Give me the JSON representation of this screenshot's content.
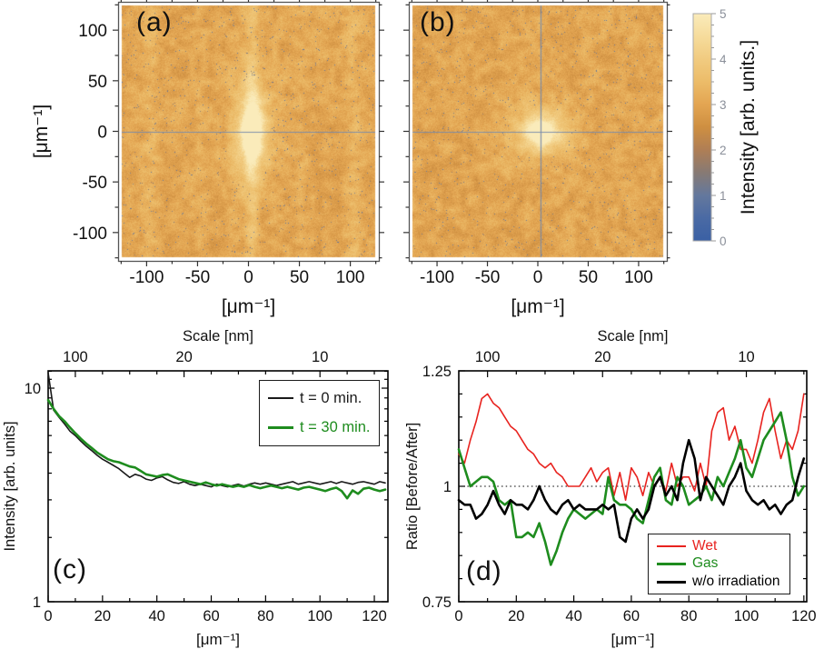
{
  "panels": {
    "a": {
      "label": "(a)",
      "axis_title_x": "[μm⁻¹]",
      "axis_title_y": "[μm⁻¹]",
      "tick_values": [
        -100,
        -50,
        0,
        50,
        100
      ],
      "minor_step": 25,
      "range": [
        -128,
        128
      ],
      "crosshair": "horizontal",
      "has_streaks": true
    },
    "b": {
      "label": "(b)",
      "axis_title_x": "[μm⁻¹]",
      "tick_values": [
        -100,
        -50,
        0,
        50,
        100
      ],
      "minor_step": 25,
      "range": [
        -128,
        128
      ],
      "crosshair": "both",
      "has_streaks": false
    }
  },
  "colorbar": {
    "title": "Intensity [arb. units.]",
    "tick_values": [
      0,
      1,
      2,
      3,
      4,
      5
    ],
    "minor_step": 0.25,
    "range": [
      0,
      5
    ],
    "gradient_stops": [
      [
        0,
        "#3A60A4"
      ],
      [
        0.5,
        "#4A6AA4"
      ],
      [
        1,
        "#64789D"
      ],
      [
        1.5,
        "#877A74"
      ],
      [
        2,
        "#AF7E55"
      ],
      [
        2.5,
        "#CE8F41"
      ],
      [
        3,
        "#E3A552"
      ],
      [
        3.5,
        "#ECBC69"
      ],
      [
        4,
        "#F1CB80"
      ],
      [
        4.5,
        "#F6DC9C"
      ],
      [
        5,
        "#FAEBBA"
      ]
    ]
  },
  "chart_data": [
    {
      "id": "c",
      "type": "line",
      "panel_label": "(c)",
      "x_axis": {
        "title": "[μm⁻¹]",
        "min": 0,
        "max": 125,
        "major_ticks": [
          0,
          20,
          40,
          60,
          80,
          100,
          120
        ],
        "minor_step": 10
      },
      "y_axis": {
        "title": "Intensity [arb. units]",
        "scale": "log",
        "min": 1,
        "max": 12.05,
        "labeled_ticks": [
          1,
          10
        ],
        "minor_ticks": [
          2,
          3,
          4,
          5,
          6,
          7,
          8,
          9,
          11,
          12
        ]
      },
      "top_axis": {
        "title": "Scale [nm]",
        "minor_step": 10,
        "labeled_ticks": [
          {
            "value": 10,
            "label": "100"
          },
          {
            "value": 50,
            "label": "20"
          },
          {
            "value": 100,
            "label": "10"
          }
        ]
      },
      "x_start": 0,
      "x_step": 2,
      "legend_position": "top-right",
      "series": [
        {
          "name": "t = 0 min.",
          "color": "#1a1a1a",
          "line_width": 1.6,
          "values": [
            11.8,
            7.9,
            7.3,
            6.8,
            6.3,
            6.0,
            5.65,
            5.35,
            5.1,
            4.85,
            4.65,
            4.5,
            4.35,
            4.2,
            4.0,
            3.82,
            3.95,
            3.88,
            3.75,
            3.7,
            3.8,
            3.85,
            3.72,
            3.62,
            3.58,
            3.65,
            3.55,
            3.5,
            3.55,
            3.5,
            3.45,
            3.55,
            3.5,
            3.45,
            3.5,
            3.55,
            3.48,
            3.55,
            3.6,
            3.55,
            3.6,
            3.55,
            3.5,
            3.55,
            3.6,
            3.65,
            3.55,
            3.6,
            3.65,
            3.6,
            3.55,
            3.6,
            3.65,
            3.58,
            3.65,
            3.6,
            3.55,
            3.62,
            3.65,
            3.6,
            3.55,
            3.65,
            3.6
          ]
        },
        {
          "name": "t = 30 min.",
          "color": "#1e8c1e",
          "line_width": 2.6,
          "values": [
            8.8,
            8.0,
            7.4,
            7.0,
            6.55,
            6.15,
            5.8,
            5.5,
            5.25,
            5.0,
            4.82,
            4.65,
            4.55,
            4.5,
            4.4,
            4.3,
            4.25,
            4.1,
            3.95,
            3.9,
            3.85,
            3.92,
            3.95,
            3.85,
            3.75,
            3.7,
            3.65,
            3.6,
            3.55,
            3.62,
            3.55,
            3.5,
            3.55,
            3.5,
            3.45,
            3.5,
            3.45,
            3.52,
            3.45,
            3.4,
            3.45,
            3.5,
            3.45,
            3.4,
            3.45,
            3.4,
            3.35,
            3.42,
            3.45,
            3.4,
            3.35,
            3.3,
            3.37,
            3.42,
            3.3,
            3.05,
            3.32,
            3.2,
            3.38,
            3.42,
            3.35,
            3.3,
            3.35
          ]
        }
      ]
    },
    {
      "id": "d",
      "type": "line",
      "panel_label": "(d)",
      "x_axis": {
        "title": "[μm⁻¹]",
        "min": 0,
        "max": 121,
        "major_ticks": [
          0,
          20,
          40,
          60,
          80,
          100,
          120
        ],
        "minor_step": 10
      },
      "y_axis": {
        "title": "Ratio [Before/After]",
        "scale": "linear",
        "min": 0.75,
        "max": 1.25,
        "labeled_ticks": [
          0.75,
          1,
          1.25
        ],
        "minor_step": 0.05
      },
      "top_axis": {
        "title": "Scale [nm]",
        "minor_step": 10,
        "labeled_ticks": [
          {
            "value": 10,
            "label": "100"
          },
          {
            "value": 50,
            "label": "20"
          },
          {
            "value": 100,
            "label": "10"
          }
        ]
      },
      "reference_line": 1,
      "x_start": 0,
      "x_step": 2,
      "legend_position": "bottom-right",
      "series": [
        {
          "name": "Wet",
          "color": "#e8231f",
          "line_width": 1.6,
          "values": [
            1.07,
            1.05,
            1.1,
            1.14,
            1.19,
            1.2,
            1.18,
            1.17,
            1.15,
            1.13,
            1.12,
            1.1,
            1.08,
            1.07,
            1.05,
            1.04,
            1.05,
            1.03,
            1.02,
            1.0,
            1.0,
            1.0,
            1.02,
            1.04,
            1.01,
            1.03,
            1.04,
            0.98,
            1.03,
            0.97,
            1.04,
            1.02,
            0.98,
            1.03,
            1.0,
            1.02,
            0.99,
            1.05,
            1.0,
            1.02,
            1.02,
            0.99,
            1.05,
            1.0,
            1.12,
            1.16,
            1.17,
            1.1,
            1.13,
            1.08,
            1.08,
            1.05,
            1.1,
            1.16,
            1.19,
            1.12,
            1.06,
            1.1,
            1.08,
            1.12,
            1.2
          ]
        },
        {
          "name": "Gas",
          "color": "#1e8c1e",
          "line_width": 2.6,
          "values": [
            1.08,
            1.04,
            1.0,
            1.01,
            1.02,
            1.02,
            1.01,
            0.97,
            0.96,
            0.97,
            0.89,
            0.89,
            0.9,
            0.89,
            0.92,
            0.88,
            0.83,
            0.86,
            0.9,
            0.93,
            0.95,
            0.94,
            0.93,
            0.94,
            0.95,
            0.94,
            1.02,
            0.97,
            0.96,
            0.96,
            0.95,
            0.93,
            0.92,
            0.97,
            1.02,
            1.04,
            0.97,
            0.96,
            1.02,
            1.0,
            0.96,
            0.97,
            0.98,
            1.0,
            0.97,
            1.02,
            1.0,
            1.03,
            1.06,
            1.1,
            1.04,
            1.02,
            1.06,
            1.1,
            1.12,
            1.14,
            1.16,
            1.1,
            1.02,
            0.98,
            1.0
          ]
        },
        {
          "name": "w/o irradiation",
          "color": "#000000",
          "line_width": 2.6,
          "values": [
            0.97,
            0.96,
            0.96,
            0.93,
            0.94,
            0.96,
            0.99,
            0.96,
            0.94,
            0.97,
            0.96,
            0.96,
            0.95,
            0.97,
            1.0,
            0.97,
            0.95,
            0.94,
            0.96,
            0.97,
            0.95,
            0.96,
            0.95,
            0.95,
            0.95,
            0.96,
            0.95,
            0.96,
            0.89,
            0.88,
            0.93,
            0.95,
            0.93,
            0.95,
            1.0,
            1.02,
            0.98,
            1.0,
            0.97,
            1.05,
            1.1,
            1.06,
            0.97,
            1.02,
            1.0,
            0.98,
            0.96,
            1.0,
            1.02,
            1.05,
            0.99,
            0.97,
            0.96,
            0.97,
            0.95,
            0.96,
            0.94,
            0.96,
            0.97,
            1.02,
            1.06
          ]
        }
      ]
    }
  ]
}
